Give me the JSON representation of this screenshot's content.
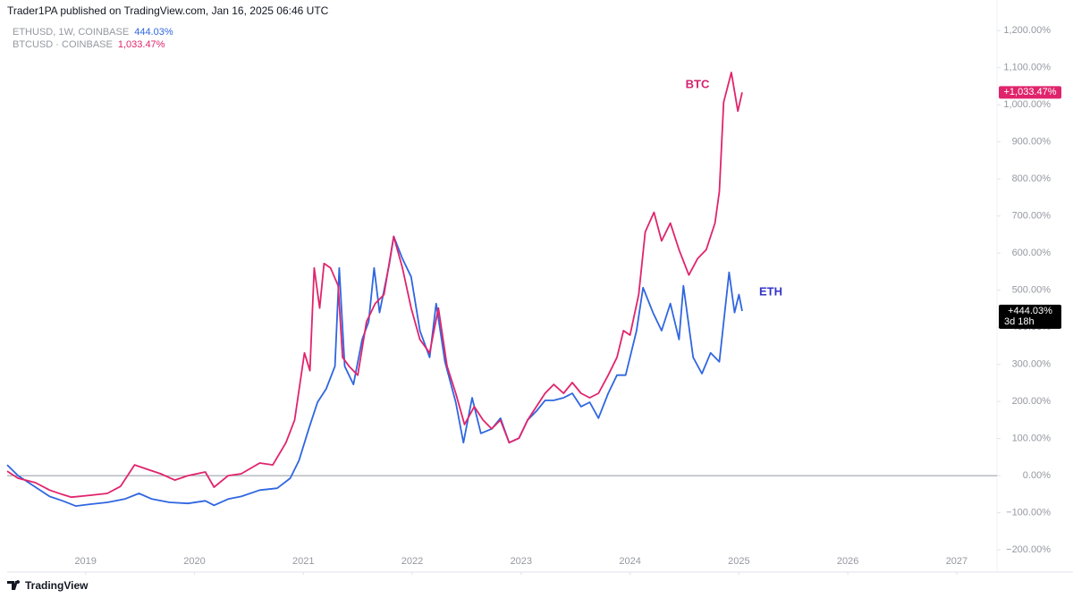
{
  "header": {
    "text": "Trader1PA published on TradingView.com, Jan 16, 2025 06:46 UTC"
  },
  "chart_data": {
    "type": "line",
    "xlim": [
      2018.28,
      2027.37
    ],
    "xticks": [
      2019,
      2020,
      2021,
      2022,
      2023,
      2024,
      2025,
      2026,
      2027
    ],
    "ylim": [
      -260,
      1215
    ],
    "yticks": [
      {
        "value": -200,
        "label": "−200.00%"
      },
      {
        "value": -100,
        "label": "−100.00%"
      },
      {
        "value": 0,
        "label": "0.00%"
      },
      {
        "value": 100,
        "label": "100.00%"
      },
      {
        "value": 200,
        "label": "200.00%"
      },
      {
        "value": 300,
        "label": "300.00%"
      },
      {
        "value": 400,
        "label": "400.00%"
      },
      {
        "value": 500,
        "label": "500.00%"
      },
      {
        "value": 600,
        "label": "600.00%"
      },
      {
        "value": 700,
        "label": "700.00%"
      },
      {
        "value": 800,
        "label": "800.00%"
      },
      {
        "value": 900,
        "label": "900.00%"
      },
      {
        "value": 1000,
        "label": "1,000.00%"
      },
      {
        "value": 1100,
        "label": "1,100.00%"
      },
      {
        "value": 1200,
        "label": "1,200.00%"
      }
    ],
    "zero_line": true,
    "countdown": "3d 18h",
    "series": [
      {
        "name": "ETHUSD, 1W, COINBASE",
        "legend_value": "444.03%",
        "last_label": "+444.03%",
        "annotation": "ETH",
        "color": "#2f66e0",
        "annotation_color": "#3535c8",
        "tag_color": "#000000",
        "x": [
          2018.28,
          2018.38,
          2018.54,
          2018.67,
          2018.79,
          2018.91,
          2019.04,
          2019.2,
          2019.36,
          2019.49,
          2019.61,
          2019.77,
          2019.94,
          2020.1,
          2020.18,
          2020.31,
          2020.43,
          2020.6,
          2020.76,
          2020.88,
          2020.96,
          2021.05,
          2021.13,
          2021.21,
          2021.29,
          2021.33,
          2021.38,
          2021.46,
          2021.54,
          2021.6,
          2021.65,
          2021.7,
          2021.79,
          2021.83,
          2021.91,
          2021.99,
          2022.07,
          2022.16,
          2022.22,
          2022.3,
          2022.4,
          2022.47,
          2022.55,
          2022.63,
          2022.73,
          2022.81,
          2022.89,
          2022.98,
          2023.06,
          2023.14,
          2023.22,
          2023.3,
          2023.39,
          2023.47,
          2023.55,
          2023.63,
          2023.71,
          2023.8,
          2023.88,
          2023.96,
          2024.06,
          2024.12,
          2024.21,
          2024.29,
          2024.37,
          2024.45,
          2024.49,
          2024.58,
          2024.66,
          2024.74,
          2024.82,
          2024.91,
          2024.96,
          2025.0,
          2025.03
        ],
        "values": [
          29,
          0,
          -31,
          -56,
          -68,
          -82,
          -77,
          -72,
          -63,
          -48,
          -63,
          -72,
          -75,
          -68,
          -80,
          -63,
          -56,
          -39,
          -34,
          -7,
          41,
          126,
          198,
          234,
          295,
          560,
          295,
          246,
          367,
          415,
          560,
          440,
          572,
          645,
          585,
          536,
          391,
          319,
          464,
          307,
          198,
          89,
          210,
          114,
          126,
          155,
          89,
          101,
          150,
          174,
          203,
          203,
          210,
          222,
          186,
          198,
          155,
          222,
          271,
          271,
          391,
          507,
          440,
          391,
          464,
          367,
          512,
          319,
          275,
          331,
          307,
          548,
          440,
          488,
          444.03
        ]
      },
      {
        "name": "BTCUSD · COINBASE",
        "legend_value": "1,033.47%",
        "last_label": "+1,033.47%",
        "annotation": "BTC",
        "color": "#e0246c",
        "annotation_color": "#d1246e",
        "tag_color": "#e0246c",
        "x": [
          2018.28,
          2018.38,
          2018.54,
          2018.67,
          2018.79,
          2018.87,
          2019.04,
          2019.2,
          2019.32,
          2019.45,
          2019.57,
          2019.69,
          2019.82,
          2019.94,
          2020.1,
          2020.18,
          2020.31,
          2020.43,
          2020.6,
          2020.72,
          2020.84,
          2020.92,
          2021.01,
          2021.06,
          2021.1,
          2021.15,
          2021.19,
          2021.25,
          2021.32,
          2021.36,
          2021.42,
          2021.5,
          2021.58,
          2021.66,
          2021.74,
          2021.83,
          2021.91,
          2021.99,
          2022.07,
          2022.16,
          2022.24,
          2022.32,
          2022.4,
          2022.48,
          2022.57,
          2022.65,
          2022.73,
          2022.81,
          2022.89,
          2022.98,
          2023.06,
          2023.14,
          2023.22,
          2023.3,
          2023.39,
          2023.47,
          2023.55,
          2023.63,
          2023.71,
          2023.8,
          2023.88,
          2023.94,
          2024.0,
          2024.08,
          2024.14,
          2024.22,
          2024.29,
          2024.37,
          2024.45,
          2024.54,
          2024.62,
          2024.7,
          2024.78,
          2024.82,
          2024.86,
          2024.93,
          2024.99,
          2025.03
        ],
        "values": [
          12,
          -7,
          -19,
          -39,
          -51,
          -58,
          -53,
          -48,
          -29,
          29,
          17,
          5,
          -12,
          0,
          10,
          -31,
          0,
          5,
          34,
          29,
          89,
          150,
          331,
          283,
          560,
          452,
          572,
          560,
          512,
          319,
          295,
          271,
          415,
          464,
          488,
          645,
          560,
          452,
          367,
          331,
          452,
          295,
          222,
          138,
          186,
          150,
          126,
          150,
          89,
          101,
          150,
          186,
          222,
          246,
          222,
          251,
          222,
          210,
          222,
          271,
          319,
          391,
          379,
          488,
          657,
          710,
          633,
          681,
          609,
          541,
          585,
          609,
          681,
          766,
          1007,
          1087,
          983,
          1033.47
        ]
      }
    ]
  },
  "footer": {
    "text": "TradingView"
  }
}
